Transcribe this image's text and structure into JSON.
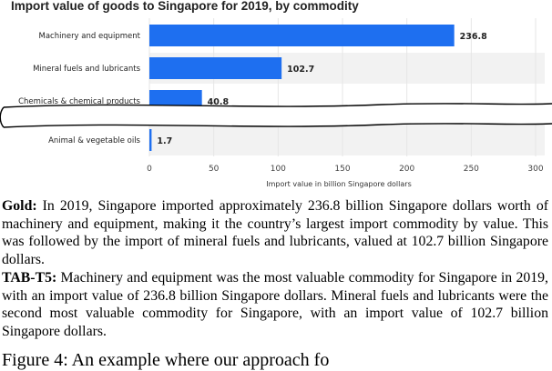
{
  "chart_data": {
    "type": "bar",
    "orientation": "horizontal",
    "title": "Import value of goods to Singapore for 2019, by commodity",
    "xlabel": "Import value in billion Singapore dollars",
    "ylabel": "",
    "categories": [
      "Machinery and equipment",
      "Mineral fuels and lubricants",
      "Chemicals & chemical products",
      "Animal & vegetable oils"
    ],
    "values": [
      236.8,
      102.7,
      40.8,
      1.7
    ],
    "value_labels": [
      "236.8",
      "102.7",
      "40.8",
      "1.7"
    ],
    "xlim": [
      0,
      300
    ],
    "x_ticks": [
      "0",
      "50",
      "100",
      "150",
      "200",
      "250",
      "300"
    ],
    "axis_break": "between Chemicals & chemical products and Animal & vegetable oils",
    "grid": true,
    "legend": "none",
    "colors": {
      "bar": "#1e6ff0",
      "alt_row": "#f2f2f2",
      "grid": "#e6e6e6"
    }
  },
  "captions": {
    "gold_label": "Gold:",
    "gold_text": " In 2019, Singapore imported approximately 236.8 billion Singapore dollars worth of machinery and equipment, making it the country’s largest import commodity by value.  This was followed by the import of mineral fuels and lubricants, valued at 102.7 billion Singapore dollars.",
    "tab_label": "TAB-T5:",
    "tab_text": " Machinery and equipment was the most valuable commodity for Singapore in 2019, with an import value of 236.8 billion Singapore dollars. Mineral fuels and lubricants were the second most valuable commodity for Singapore, with an import value of 102.7 billion Singapore dollars.",
    "footer": "Figure 4:  An example where our approach fo"
  }
}
